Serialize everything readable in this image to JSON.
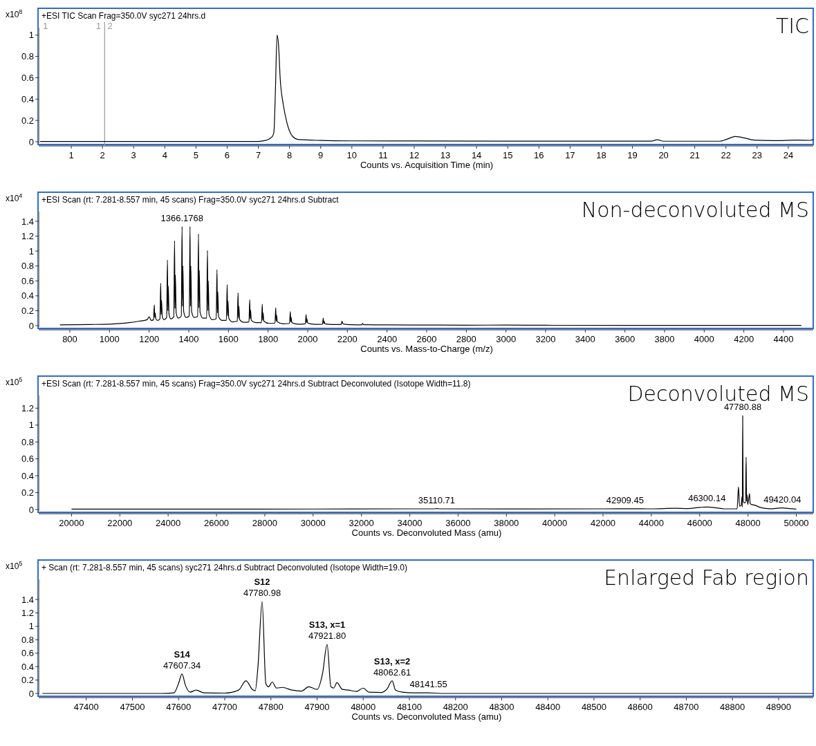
{
  "chart_data": [
    {
      "type": "line",
      "subtitle": "+ESI TIC Scan Frag=350.0V syc271 24hrs.d",
      "title": "TIC",
      "xlabel": "Counts vs. Acquisition Time (min)",
      "ylabel": "x10$^{8}$",
      "xlim": [
        0,
        24.8
      ],
      "ylim": [
        0,
        1.07
      ],
      "xticks": [
        1,
        2,
        3,
        4,
        5,
        6,
        7,
        8,
        9,
        10,
        11,
        12,
        13,
        14,
        15,
        16,
        17,
        18,
        19,
        20,
        21,
        22,
        23,
        24
      ],
      "yticks": [
        0,
        0.2,
        0.4,
        0.6,
        0.8,
        1
      ],
      "annotations": [
        "1"
      ],
      "ref_lines": [
        {
          "axis": "x",
          "value": 2.07,
          "label": "1 2",
          "color": "#999999"
        }
      ],
      "series": [
        {
          "color": "#000000",
          "x": [
            0,
            2,
            4,
            6,
            7,
            7.2,
            7.45,
            7.5,
            7.55,
            7.6,
            7.65,
            7.7,
            7.8,
            7.9,
            8,
            8.1,
            8.3,
            9,
            10,
            12,
            15,
            19,
            19.6,
            19.8,
            20,
            21,
            21.8,
            22,
            22.3,
            22.6,
            22.9,
            23.5,
            24.3,
            24.7,
            24.8
          ],
          "values": [
            0.003,
            0.003,
            0.003,
            0.003,
            0.003,
            0.01,
            0.05,
            0.09,
            0.5,
            1.0,
            0.9,
            0.6,
            0.35,
            0.2,
            0.1,
            0.05,
            0.02,
            0.012,
            0.008,
            0.007,
            0.006,
            0.006,
            0.006,
            0.018,
            0.005,
            0.005,
            0.005,
            0.02,
            0.05,
            0.035,
            0.015,
            0.01,
            0.015,
            0.013,
            0.02
          ]
        }
      ]
    },
    {
      "type": "line",
      "subtitle": "+ESI Scan (rt: 7.281-8.557 min, 45 scans) Frag=350.0V syc271 24hrs.d  Subtract",
      "title": "Non-deconvoluted MS",
      "xlabel": "Counts vs. Mass-to-Charge (m/z)",
      "ylabel": "x10$^{4}$",
      "xlim": [
        650,
        4550
      ],
      "ylim": [
        0,
        1.53
      ],
      "xticks": [
        800,
        1000,
        1200,
        1400,
        1600,
        1800,
        2000,
        2200,
        2400,
        2600,
        2800,
        3000,
        3200,
        3400,
        3600,
        3800,
        4000,
        4200,
        4400
      ],
      "yticks": [
        0,
        0.2,
        0.4,
        0.6,
        0.8,
        1,
        1.2,
        1.4
      ],
      "annotations": [
        {
          "text": "1366.1768",
          "x": 1366.1768,
          "y": 1.33
        }
      ],
      "series": [
        {
          "color": "#000000",
          "x": [
            750,
            900,
            1000,
            1100,
            1150,
            1190,
            1200,
            1210,
            1222.1,
            1226.1,
            1228.1,
            1230.1,
            1234,
            1242,
            1254.4,
            1258.4,
            1260.4,
            1262.4,
            1266.4,
            1275,
            1288.4,
            1292.4,
            1294.4,
            1296.4,
            1300.4,
            1310,
            1324.3,
            1328.3,
            1330.3,
            1332.3,
            1336.3,
            1347,
            1362.2,
            1366.2,
            1368.2,
            1370.2,
            1374.2,
            1386,
            1402.3,
            1406.3,
            1408.3,
            1410.3,
            1414.3,
            1427,
            1444.9,
            1448.9,
            1450.9,
            1452.9,
            1456.9,
            1471,
            1490.2,
            1494.2,
            1496.2,
            1498.2,
            1502.2,
            1518,
            1538.3,
            1542.3,
            1544.3,
            1546.3,
            1550.3,
            1568,
            1589.7,
            1593.7,
            1595.7,
            1597.7,
            1601.7,
            1620,
            1644.6,
            1648.6,
            1650.6,
            1652.6,
            1656.6,
            1677,
            1703.5,
            1707.5,
            1709.5,
            1711.5,
            1715.5,
            1738,
            1766.7,
            1770.7,
            1772.7,
            1774.7,
            1778.7,
            1804,
            1834.7,
            1838.7,
            1840.7,
            1842.7,
            1846.7,
            1875,
            1908.2,
            1912.2,
            1914.2,
            1916.2,
            1920.2,
            1952,
            1987.9,
            1991.9,
            1993.9,
            1995.9,
            1999.9,
            2035,
            2074.4,
            2078.4,
            2080.4,
            2082.4,
            2086.4,
            2125,
            2168.8,
            2172.8,
            2176.8,
            2182,
            2225,
            2272.3,
            2276.3,
            2282,
            2400,
            2600,
            2800,
            3000,
            3200,
            3600,
            4000,
            4490
          ],
          "values": [
            0.01,
            0.015,
            0.02,
            0.04,
            0.06,
            0.08,
            0.12,
            0.07,
            0.08,
            0.28,
            0.11,
            0.17,
            0.09,
            0.07,
            0.09,
            0.57,
            0.15,
            0.34,
            0.12,
            0.08,
            0.11,
            0.88,
            0.2,
            0.53,
            0.15,
            0.09,
            0.12,
            1.14,
            0.23,
            0.68,
            0.17,
            0.1,
            0.13,
            1.33,
            0.26,
            0.8,
            0.19,
            0.11,
            0.13,
            1.33,
            0.26,
            0.8,
            0.19,
            0.11,
            0.12,
            1.23,
            0.24,
            0.74,
            0.18,
            0.1,
            0.1,
            1.01,
            0.2,
            0.6,
            0.15,
            0.08,
            0.09,
            0.75,
            0.17,
            0.45,
            0.12,
            0.07,
            0.07,
            0.55,
            0.13,
            0.33,
            0.1,
            0.05,
            0.06,
            0.44,
            0.1,
            0.26,
            0.08,
            0.045,
            0.05,
            0.35,
            0.09,
            0.21,
            0.07,
            0.04,
            0.04,
            0.29,
            0.07,
            0.17,
            0.06,
            0.03,
            0.035,
            0.24,
            0.06,
            0.14,
            0.05,
            0.025,
            0.03,
            0.19,
            0.05,
            0.11,
            0.04,
            0.02,
            0.025,
            0.15,
            0.04,
            0.09,
            0.035,
            0.018,
            0.02,
            0.1,
            0.03,
            0.06,
            0.025,
            0.015,
            0.015,
            0.06,
            0.03,
            0.02,
            0.012,
            0.01,
            0.03,
            0.012,
            0.01,
            0.008,
            0.006,
            0.008,
            0.005,
            0.004,
            0.003,
            0.003
          ]
        }
      ]
    },
    {
      "type": "line",
      "subtitle": "+ESI Scan (rt: 7.281-8.557 min, 45 scans) Frag=350.0V syc271 24hrs.d  Subtract Deconvoluted (Isotope Width=11.8)",
      "title": "Deconvoluted MS",
      "xlabel": "Counts vs. Deconvoluted Mass (amu)",
      "ylabel": "x10$^{5}$",
      "xlim": [
        18700,
        50700
      ],
      "ylim": [
        0,
        1.35
      ],
      "xticks": [
        20000,
        22000,
        24000,
        26000,
        28000,
        30000,
        32000,
        34000,
        36000,
        38000,
        40000,
        42000,
        44000,
        46000,
        48000,
        50000
      ],
      "yticks": [
        0,
        0.2,
        0.4,
        0.6,
        0.8,
        1,
        1.2
      ],
      "annotations": [
        {
          "text": "47780.88",
          "x": 47780.88,
          "y": 1.11
        },
        {
          "text": "35110.71",
          "x": 35110.71,
          "y": 0.012
        },
        {
          "text": "42909.45",
          "x": 42909.45,
          "y": 0.01
        },
        {
          "text": "46300.14",
          "x": 46300.14,
          "y": 0.03
        },
        {
          "text": "49420.04",
          "x": 49420.04,
          "y": 0.02
        }
      ],
      "series": [
        {
          "color": "#000000",
          "x": [
            20000,
            25000,
            30000,
            34000,
            35000,
            35110.71,
            35250,
            38000,
            42000,
            42909.45,
            44000,
            45000,
            45500,
            46000,
            46300.14,
            46700,
            47000,
            47550,
            47607,
            47650,
            47720,
            47750,
            47765,
            47780.88,
            47800,
            47830,
            47900,
            47921.8,
            47940,
            47960,
            47990,
            48062.61,
            48090,
            48150,
            48300,
            48500,
            48800,
            49000,
            49420.04,
            49700,
            50000
          ],
          "values": [
            0.005,
            0.005,
            0.006,
            0.008,
            0.008,
            0.012,
            0.008,
            0.007,
            0.008,
            0.01,
            0.008,
            0.015,
            0.012,
            0.025,
            0.03,
            0.02,
            0.008,
            0.01,
            0.27,
            0.04,
            0.05,
            0.15,
            0.03,
            1.11,
            0.1,
            0.08,
            0.08,
            0.62,
            0.1,
            0.17,
            0.06,
            0.19,
            0.07,
            0.06,
            0.05,
            0.025,
            0.012,
            0.01,
            0.02,
            0.012,
            0.005
          ]
        }
      ]
    },
    {
      "type": "line",
      "subtitle": "+ Scan (rt: 7.281-8.557 min, 45 scans) syc271 24hrs.d  Subtract Deconvoluted (Isotope Width=19.0)",
      "title": "Enlarged Fab region",
      "xlabel": "Counts vs. Deconvoluted Mass (amu)",
      "ylabel": "x10$^{5}$",
      "xlim": [
        47300,
        48975
      ],
      "ylim": [
        0,
        1.7
      ],
      "xticks": [
        47400,
        47500,
        47600,
        47700,
        47800,
        47900,
        48000,
        48100,
        48200,
        48300,
        48400,
        48500,
        48600,
        48700,
        48800,
        48900
      ],
      "yticks": [
        0,
        0.2,
        0.4,
        0.6,
        0.8,
        1,
        1.2,
        1.4
      ],
      "annotations": [
        {
          "text": "S14\n47607.34",
          "x": 47607.34,
          "y": 0.29
        },
        {
          "text": "S12\n47780.98",
          "x": 47780.98,
          "y": 1.37
        },
        {
          "text": "S13, x=1\n47921.80",
          "x": 47921.8,
          "y": 0.73
        },
        {
          "text": "S13, x=2\n48062.61",
          "x": 48062.61,
          "y": 0.19
        },
        {
          "text": "48141.55",
          "x": 48141.55,
          "y": 0.01
        }
      ],
      "series": [
        {
          "color": "#000000",
          "x": [
            47305,
            47560,
            47590,
            47600,
            47607.34,
            47615,
            47625,
            47638,
            47655,
            47700,
            47730,
            47746,
            47760,
            47766,
            47772,
            47780.98,
            47789,
            47795,
            47803,
            47812,
            47825,
            47846,
            47866,
            47882,
            47900,
            47912,
            47921.8,
            47930,
            47936,
            47943,
            47955,
            47968,
            47985,
            48000,
            48012,
            48040,
            48052,
            48062.61,
            48070,
            48085,
            48110,
            48141.55,
            48170,
            48975
          ],
          "values": [
            0,
            0,
            0.01,
            0.15,
            0.29,
            0.12,
            0.02,
            0.05,
            0.01,
            0.005,
            0.05,
            0.19,
            0.06,
            0.04,
            0.4,
            1.37,
            0.15,
            0.1,
            0.17,
            0.08,
            0.09,
            0.05,
            0.035,
            0.1,
            0.06,
            0.3,
            0.73,
            0.1,
            0.08,
            0.16,
            0.06,
            0.05,
            0.03,
            0.08,
            0.02,
            0.015,
            0.07,
            0.19,
            0.05,
            0.02,
            0.01,
            0.01,
            0,
            0
          ]
        }
      ]
    }
  ]
}
